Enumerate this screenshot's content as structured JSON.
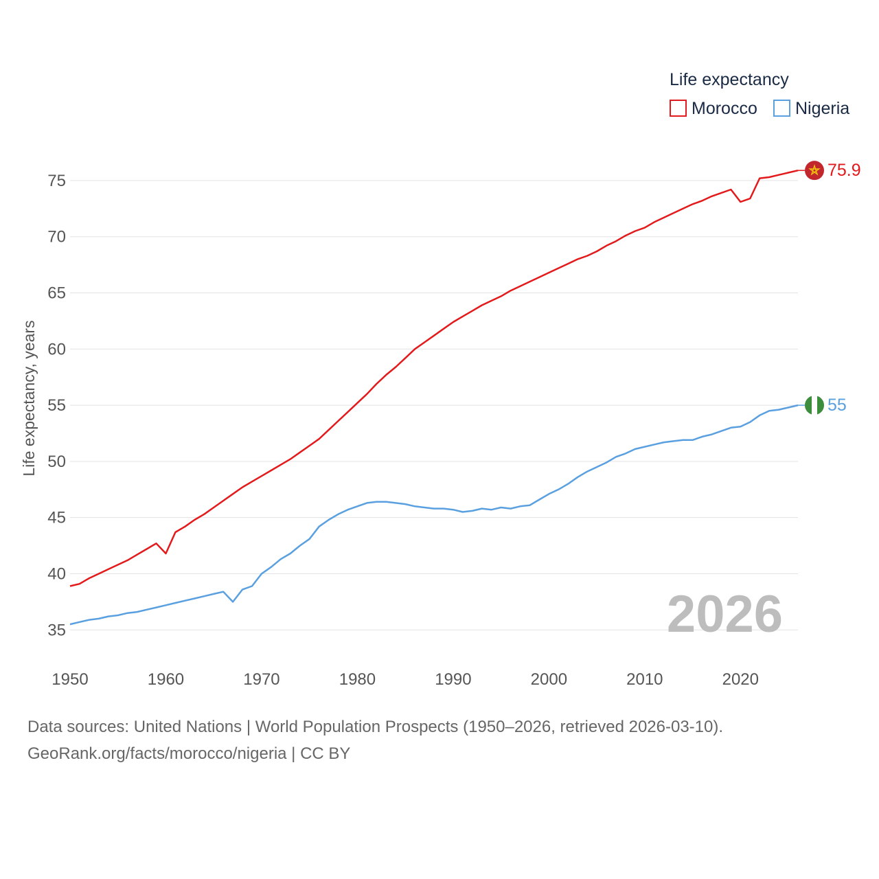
{
  "chart_data": {
    "type": "line",
    "legend_title": "Life expectancy",
    "ylabel": "Life expectancy, years",
    "xlabel": "",
    "xlim": [
      1950,
      2026
    ],
    "ylim": [
      33,
      77.5
    ],
    "x_ticks": [
      1950,
      1960,
      1970,
      1980,
      1990,
      2000,
      2010,
      2020
    ],
    "y_ticks": [
      35,
      40,
      45,
      50,
      55,
      60,
      65,
      70,
      75
    ],
    "grid": true,
    "legend_position": "top-right",
    "year_label": "2026",
    "series": [
      {
        "name": "Morocco",
        "color": "#e31a1c",
        "end_label": "75.9",
        "flag_icon": "morocco-flag-icon",
        "points": [
          [
            1950,
            38.9
          ],
          [
            1951,
            39.1
          ],
          [
            1952,
            39.6
          ],
          [
            1953,
            40.0
          ],
          [
            1954,
            40.4
          ],
          [
            1955,
            40.8
          ],
          [
            1956,
            41.2
          ],
          [
            1957,
            41.7
          ],
          [
            1958,
            42.2
          ],
          [
            1959,
            42.7
          ],
          [
            1960,
            41.8
          ],
          [
            1961,
            43.7
          ],
          [
            1962,
            44.2
          ],
          [
            1963,
            44.8
          ],
          [
            1964,
            45.3
          ],
          [
            1965,
            45.9
          ],
          [
            1966,
            46.5
          ],
          [
            1967,
            47.1
          ],
          [
            1968,
            47.7
          ],
          [
            1969,
            48.2
          ],
          [
            1970,
            48.7
          ],
          [
            1971,
            49.2
          ],
          [
            1972,
            49.7
          ],
          [
            1973,
            50.2
          ],
          [
            1974,
            50.8
          ],
          [
            1975,
            51.4
          ],
          [
            1976,
            52.0
          ],
          [
            1977,
            52.8
          ],
          [
            1978,
            53.6
          ],
          [
            1979,
            54.4
          ],
          [
            1980,
            55.2
          ],
          [
            1981,
            56.0
          ],
          [
            1982,
            56.9
          ],
          [
            1983,
            57.7
          ],
          [
            1984,
            58.4
          ],
          [
            1985,
            59.2
          ],
          [
            1986,
            60.0
          ],
          [
            1987,
            60.6
          ],
          [
            1988,
            61.2
          ],
          [
            1989,
            61.8
          ],
          [
            1990,
            62.4
          ],
          [
            1991,
            62.9
          ],
          [
            1992,
            63.4
          ],
          [
            1993,
            63.9
          ],
          [
            1994,
            64.3
          ],
          [
            1995,
            64.7
          ],
          [
            1996,
            65.2
          ],
          [
            1997,
            65.6
          ],
          [
            1998,
            66.0
          ],
          [
            1999,
            66.4
          ],
          [
            2000,
            66.8
          ],
          [
            2001,
            67.2
          ],
          [
            2002,
            67.6
          ],
          [
            2003,
            68.0
          ],
          [
            2004,
            68.3
          ],
          [
            2005,
            68.7
          ],
          [
            2006,
            69.2
          ],
          [
            2007,
            69.6
          ],
          [
            2008,
            70.1
          ],
          [
            2009,
            70.5
          ],
          [
            2010,
            70.8
          ],
          [
            2011,
            71.3
          ],
          [
            2012,
            71.7
          ],
          [
            2013,
            72.1
          ],
          [
            2014,
            72.5
          ],
          [
            2015,
            72.9
          ],
          [
            2016,
            73.2
          ],
          [
            2017,
            73.6
          ],
          [
            2018,
            73.9
          ],
          [
            2019,
            74.2
          ],
          [
            2020,
            73.1
          ],
          [
            2021,
            73.4
          ],
          [
            2022,
            75.2
          ],
          [
            2023,
            75.3
          ],
          [
            2024,
            75.5
          ],
          [
            2025,
            75.7
          ],
          [
            2026,
            75.9
          ]
        ]
      },
      {
        "name": "Nigeria",
        "color": "#5aa0e0",
        "end_label": "55",
        "flag_icon": "nigeria-flag-icon",
        "points": [
          [
            1950,
            35.5
          ],
          [
            1951,
            35.7
          ],
          [
            1952,
            35.9
          ],
          [
            1953,
            36.0
          ],
          [
            1954,
            36.2
          ],
          [
            1955,
            36.3
          ],
          [
            1956,
            36.5
          ],
          [
            1957,
            36.6
          ],
          [
            1958,
            36.8
          ],
          [
            1959,
            37.0
          ],
          [
            1960,
            37.2
          ],
          [
            1961,
            37.4
          ],
          [
            1962,
            37.6
          ],
          [
            1963,
            37.8
          ],
          [
            1964,
            38.0
          ],
          [
            1965,
            38.2
          ],
          [
            1966,
            38.4
          ],
          [
            1967,
            37.5
          ],
          [
            1968,
            38.6
          ],
          [
            1969,
            38.9
          ],
          [
            1970,
            40.0
          ],
          [
            1971,
            40.6
          ],
          [
            1972,
            41.3
          ],
          [
            1973,
            41.8
          ],
          [
            1974,
            42.5
          ],
          [
            1975,
            43.1
          ],
          [
            1976,
            44.2
          ],
          [
            1977,
            44.8
          ],
          [
            1978,
            45.3
          ],
          [
            1979,
            45.7
          ],
          [
            1980,
            46.0
          ],
          [
            1981,
            46.3
          ],
          [
            1982,
            46.4
          ],
          [
            1983,
            46.4
          ],
          [
            1984,
            46.3
          ],
          [
            1985,
            46.2
          ],
          [
            1986,
            46.0
          ],
          [
            1987,
            45.9
          ],
          [
            1988,
            45.8
          ],
          [
            1989,
            45.8
          ],
          [
            1990,
            45.7
          ],
          [
            1991,
            45.5
          ],
          [
            1992,
            45.6
          ],
          [
            1993,
            45.8
          ],
          [
            1994,
            45.7
          ],
          [
            1995,
            45.9
          ],
          [
            1996,
            45.8
          ],
          [
            1997,
            46.0
          ],
          [
            1998,
            46.1
          ],
          [
            1999,
            46.6
          ],
          [
            2000,
            47.1
          ],
          [
            2001,
            47.5
          ],
          [
            2002,
            48.0
          ],
          [
            2003,
            48.6
          ],
          [
            2004,
            49.1
          ],
          [
            2005,
            49.5
          ],
          [
            2006,
            49.9
          ],
          [
            2007,
            50.4
          ],
          [
            2008,
            50.7
          ],
          [
            2009,
            51.1
          ],
          [
            2010,
            51.3
          ],
          [
            2011,
            51.5
          ],
          [
            2012,
            51.7
          ],
          [
            2013,
            51.8
          ],
          [
            2014,
            51.9
          ],
          [
            2015,
            51.9
          ],
          [
            2016,
            52.2
          ],
          [
            2017,
            52.4
          ],
          [
            2018,
            52.7
          ],
          [
            2019,
            53.0
          ],
          [
            2020,
            53.1
          ],
          [
            2021,
            53.5
          ],
          [
            2022,
            54.1
          ],
          [
            2023,
            54.5
          ],
          [
            2024,
            54.6
          ],
          [
            2025,
            54.8
          ],
          [
            2026,
            55.0
          ]
        ]
      }
    ]
  },
  "footer": {
    "line1": "Data sources: United Nations | World Population Prospects (1950–2026, retrieved 2026-03-10).",
    "line2": "GeoRank.org/facts/morocco/nigeria | CC BY"
  }
}
